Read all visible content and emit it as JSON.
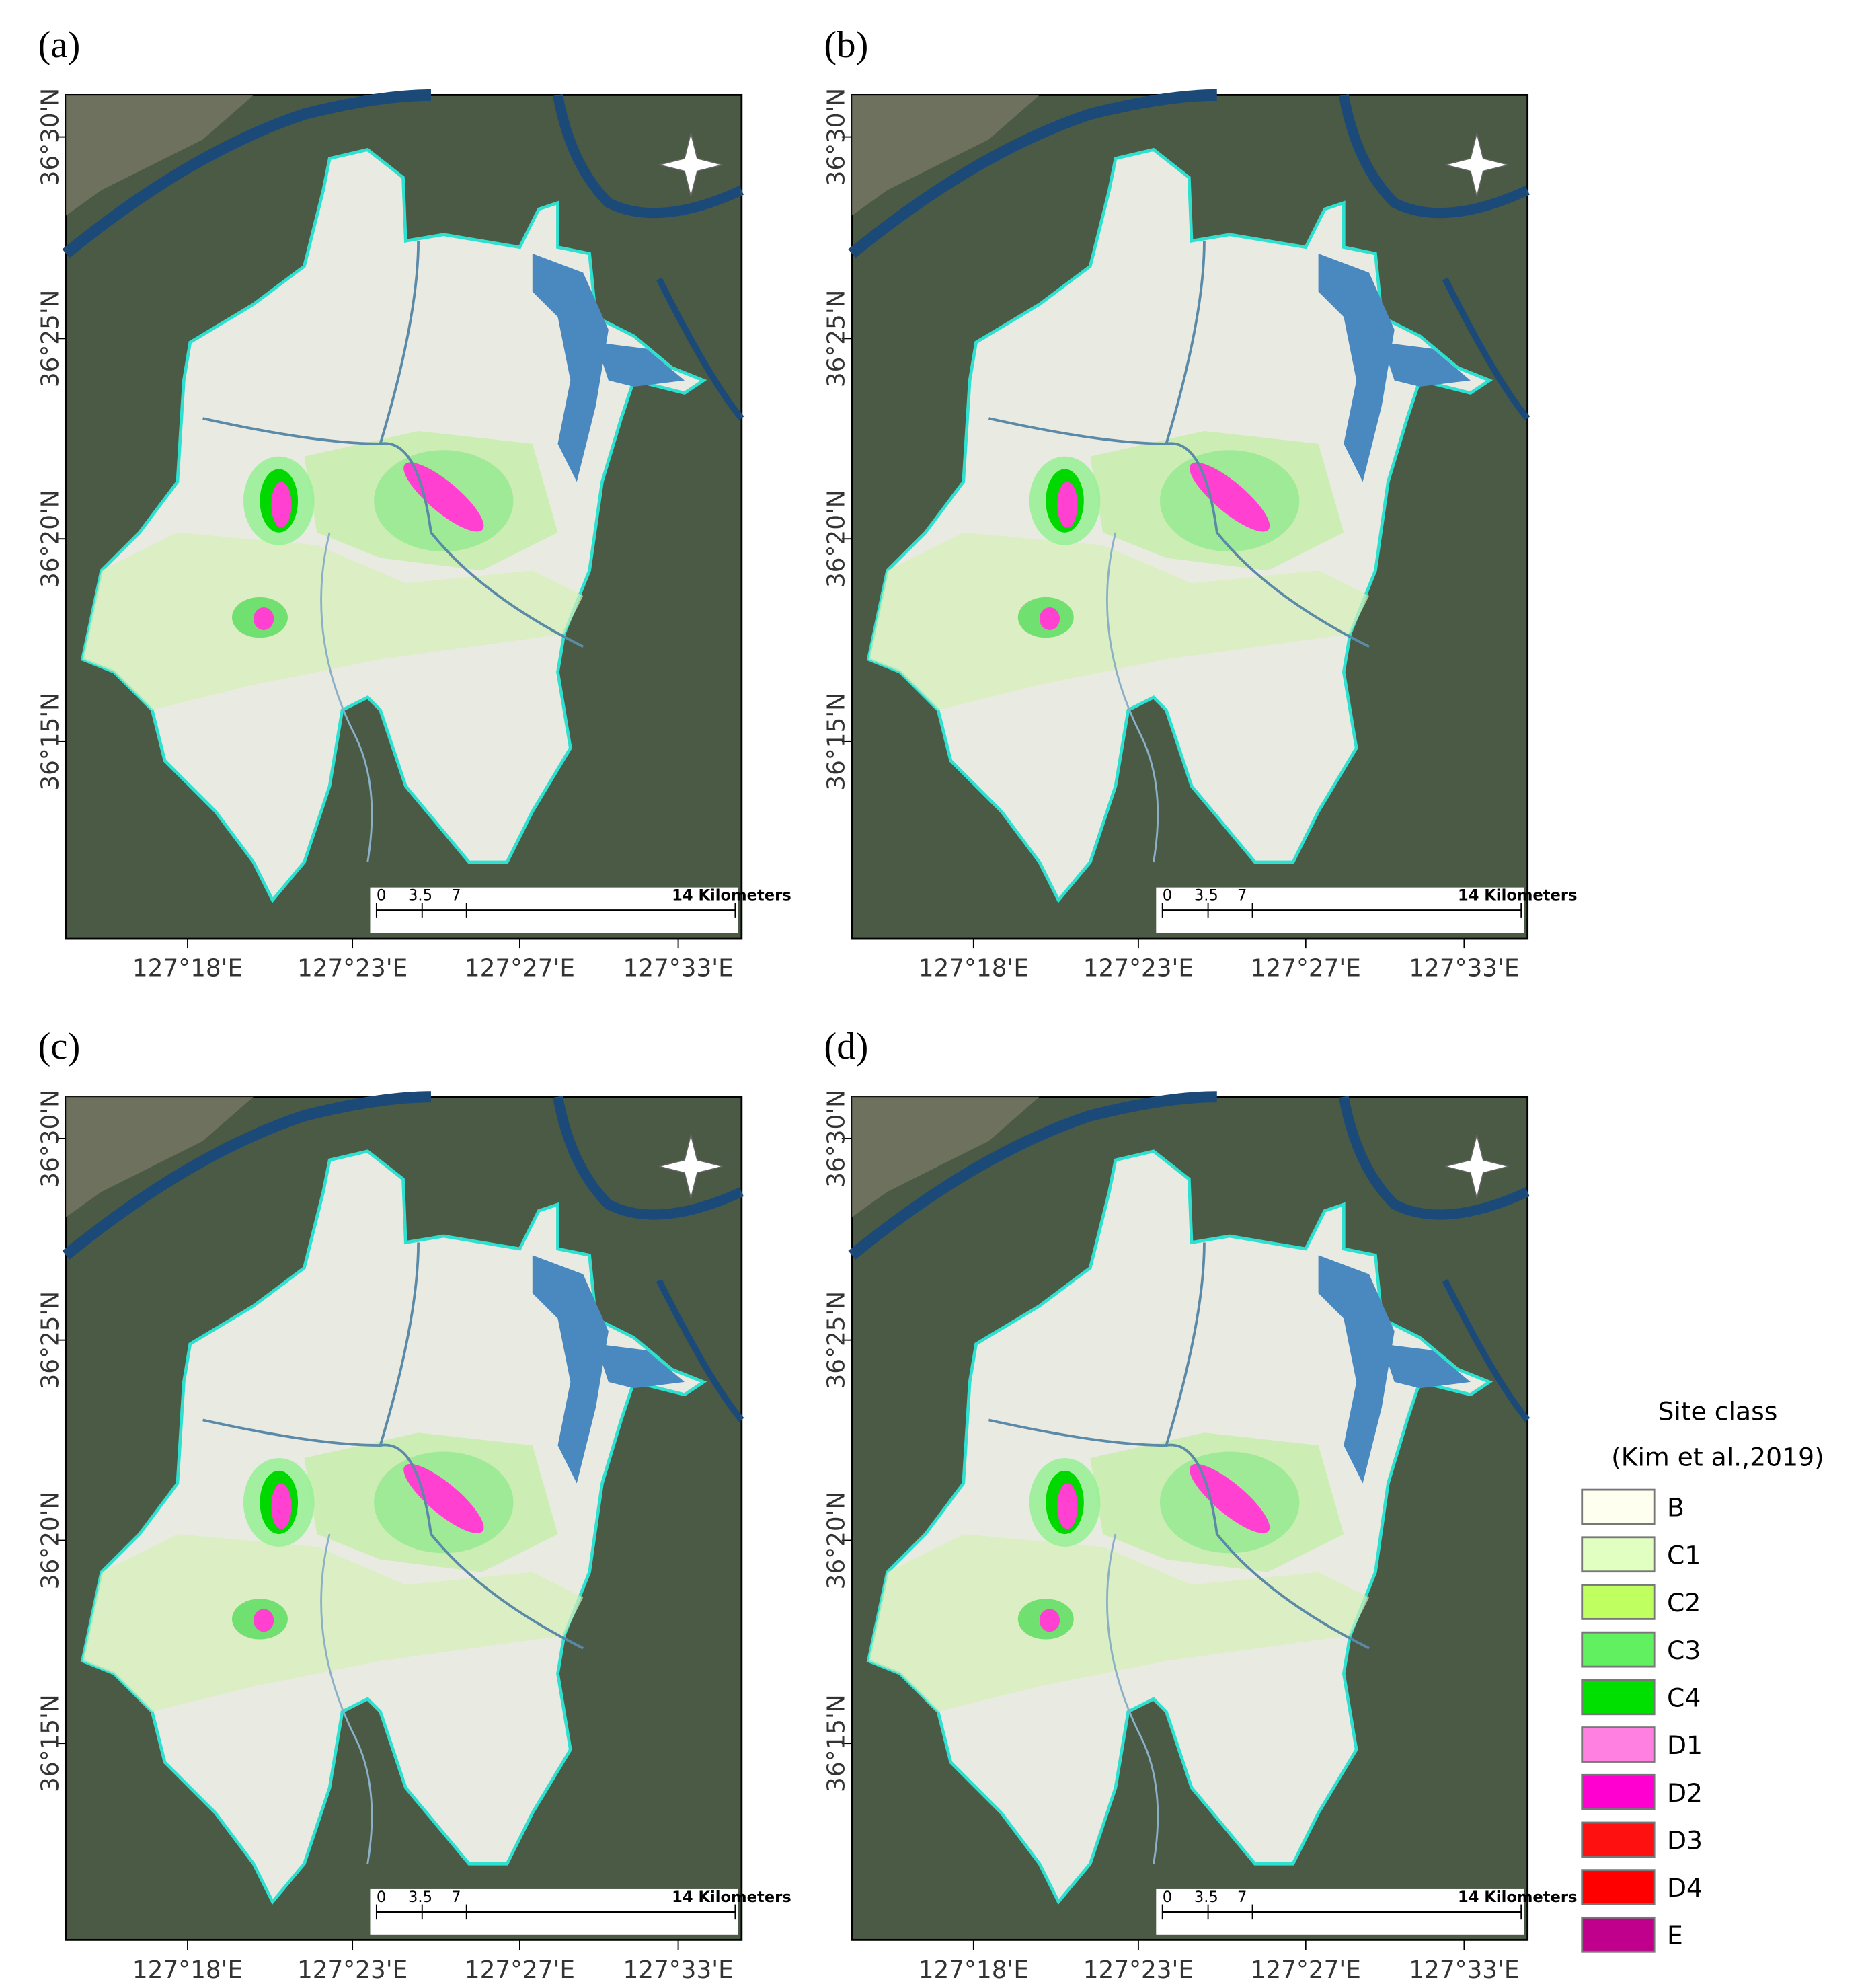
{
  "panels": [
    {
      "label": "(a)"
    },
    {
      "label": "(b)"
    },
    {
      "label": "(c)"
    },
    {
      "label": "(d)"
    }
  ],
  "latitude_labels": [
    "36°30'N",
    "36°25'N",
    "36°20'N",
    "36°15'N"
  ],
  "longitude_labels": [
    "127°18'E",
    "127°23'E",
    "127°27'E",
    "127°33'E"
  ],
  "scale_bar": {
    "ticks": [
      "0",
      "3.5",
      "7",
      "14 Kilometers"
    ]
  },
  "legend": {
    "title": [
      "Site class",
      "(Kim et al.,2019)"
    ],
    "items": [
      {
        "label": "B",
        "color": "#fffff0"
      },
      {
        "label": "C1",
        "color": "#e0ffc0"
      },
      {
        "label": "C2",
        "color": "#c0ff60"
      },
      {
        "label": "C3",
        "color": "#60f060"
      },
      {
        "label": "C4",
        "color": "#00e000"
      },
      {
        "label": "D1",
        "color": "#ff80e0"
      },
      {
        "label": "D2",
        "color": "#ff00d0"
      },
      {
        "label": "D3",
        "color": "#ff1010"
      },
      {
        "label": "D4",
        "color": "#ff0000"
      },
      {
        "label": "E",
        "color": "#c0008c"
      }
    ]
  }
}
